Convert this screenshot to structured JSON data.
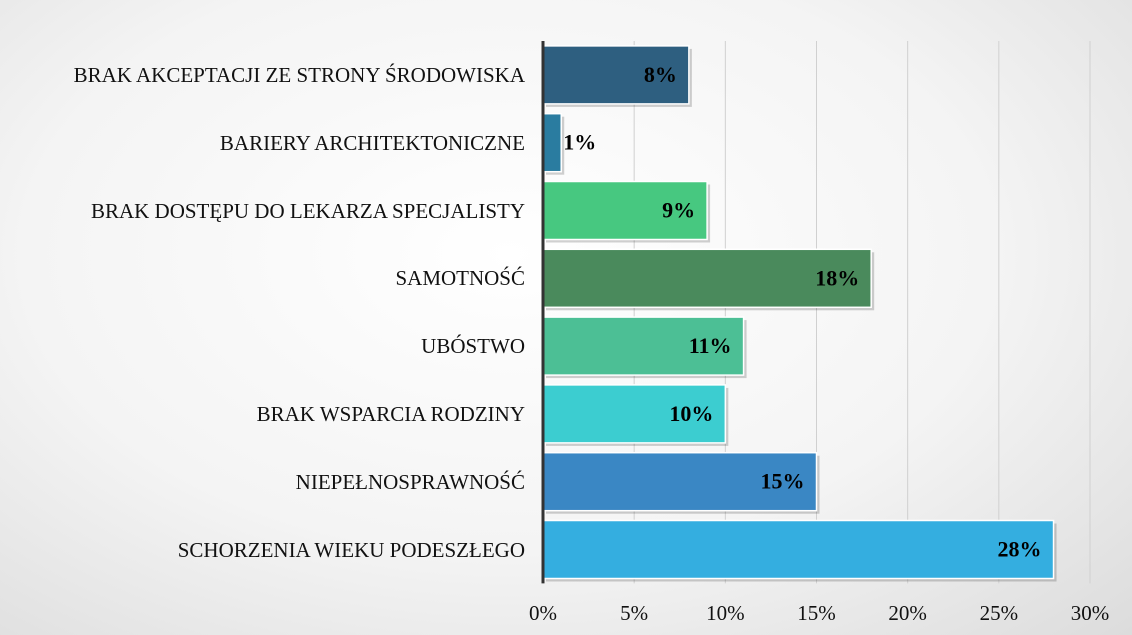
{
  "chart_data": {
    "type": "bar",
    "orientation": "horizontal",
    "categories": [
      "BRAK AKCEPTACJI ZE STRONY ŚRODOWISKA",
      "BARIERY ARCHITEKTONICZNE",
      "BRAK DOSTĘPU DO LEKARZA SPECJALISTY",
      "SAMOTNOŚĆ",
      "UBÓSTWO",
      "BRAK WSPARCIA RODZINY",
      "NIEPEŁNOSPRAWNOŚĆ",
      "SCHORZENIA WIEKU PODESZŁEGO"
    ],
    "values": [
      8,
      1,
      9,
      18,
      11,
      10,
      15,
      28
    ],
    "value_labels": [
      "8%",
      "1%",
      "9%",
      "18%",
      "11%",
      "10%",
      "15%",
      "28%"
    ],
    "colors": [
      "#2e5f80",
      "#2a7ca0",
      "#47c880",
      "#4a8a5c",
      "#4cbf95",
      "#3ccdd0",
      "#3a87c4",
      "#34aee0"
    ],
    "xlim": [
      0,
      30
    ],
    "xticks": [
      {
        "value": 0,
        "label": "0%"
      },
      {
        "value": 5,
        "label": "5%"
      },
      {
        "value": 10,
        "label": "10%"
      },
      {
        "value": 15,
        "label": "15%"
      },
      {
        "value": 20,
        "label": "20%"
      },
      {
        "value": 25,
        "label": "25%"
      },
      {
        "value": 30,
        "label": "30%"
      }
    ],
    "grid": true
  }
}
